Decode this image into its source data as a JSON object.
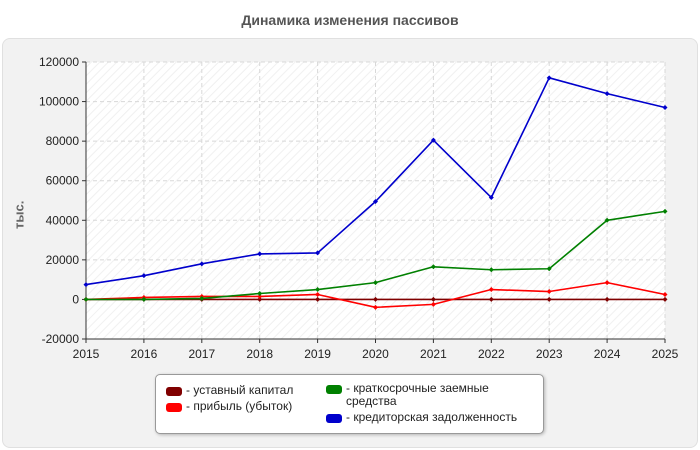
{
  "chart_data": {
    "type": "line",
    "title": "Динамика изменения пассивов",
    "ylabel": "тыс.",
    "xlabel": "",
    "x": [
      "2015",
      "2016",
      "2017",
      "2018",
      "2019",
      "2020",
      "2021",
      "2022",
      "2023",
      "2024",
      "2025"
    ],
    "ylim": [
      -20000,
      120000
    ],
    "yticks": [
      "-20000",
      "0",
      "20000",
      "40000",
      "60000",
      "80000",
      "100000",
      "120000"
    ],
    "grid": true,
    "legend_position": "bottom",
    "series": [
      {
        "name": "уставный капитал",
        "color": "#800000",
        "values": [
          0,
          0,
          0,
          0,
          0,
          0,
          0,
          0,
          0,
          0,
          0
        ]
      },
      {
        "name": "прибыль (убыток)",
        "color": "#ff0000",
        "values": [
          0,
          1000,
          1500,
          1500,
          2500,
          -4000,
          -2500,
          5000,
          4000,
          8500,
          2500
        ]
      },
      {
        "name": "краткосрочные заемные средства",
        "color": "#008000",
        "values": [
          0,
          0,
          500,
          3000,
          5000,
          8500,
          16500,
          15000,
          15500,
          40000,
          44500
        ]
      },
      {
        "name": "кредиторская задолженность",
        "color": "#0000cc",
        "values": [
          7500,
          12000,
          18000,
          23000,
          23500,
          49500,
          80500,
          51500,
          112000,
          104000,
          97000
        ]
      }
    ]
  }
}
